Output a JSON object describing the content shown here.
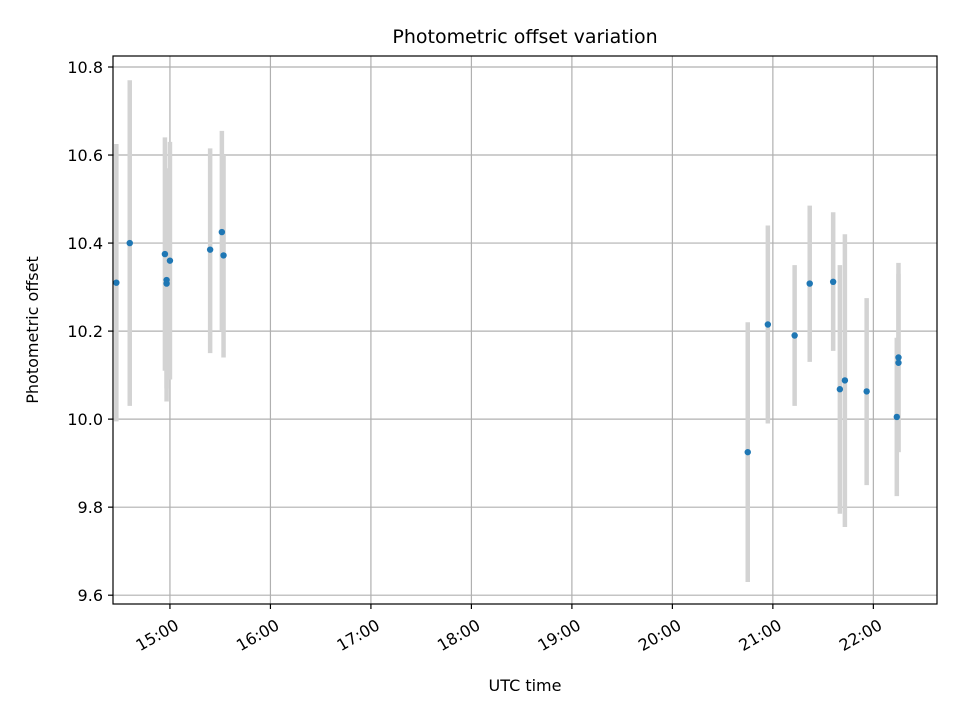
{
  "chart_data": {
    "type": "scatter",
    "title": "Photometric offset variation",
    "xlabel": "UTC time",
    "ylabel": "Photometric offset",
    "xlim": [
      "14:26",
      "22:38"
    ],
    "ylim": [
      9.58,
      10.825
    ],
    "x_ticks": [
      "15:00",
      "16:00",
      "17:00",
      "18:00",
      "19:00",
      "20:00",
      "21:00",
      "22:00"
    ],
    "y_ticks": [
      9.6,
      9.8,
      10.0,
      10.2,
      10.4,
      10.6,
      10.8
    ],
    "grid": true,
    "marker_color": "#1f77b4",
    "errorbar_color": "#d3d3d3",
    "points": [
      {
        "x": "14:28",
        "y": 10.31,
        "ylow": 9.995,
        "yhigh": 10.625
      },
      {
        "x": "14:36",
        "y": 10.4,
        "ylow": 10.03,
        "yhigh": 10.77
      },
      {
        "x": "14:57",
        "y": 10.375,
        "ylow": 10.11,
        "yhigh": 10.64
      },
      {
        "x": "14:58",
        "y": 10.308,
        "ylow": 10.04,
        "yhigh": 10.57
      },
      {
        "x": "14:58",
        "y": 10.316,
        "ylow": 10.07,
        "yhigh": 10.56
      },
      {
        "x": "15:00",
        "y": 10.36,
        "ylow": 10.09,
        "yhigh": 10.63
      },
      {
        "x": "15:24",
        "y": 10.385,
        "ylow": 10.15,
        "yhigh": 10.615
      },
      {
        "x": "15:31",
        "y": 10.425,
        "ylow": 10.2,
        "yhigh": 10.655
      },
      {
        "x": "15:32",
        "y": 10.372,
        "ylow": 10.14,
        "yhigh": 10.6
      },
      {
        "x": "20:45",
        "y": 9.925,
        "ylow": 9.63,
        "yhigh": 10.22
      },
      {
        "x": "20:57",
        "y": 10.215,
        "ylow": 9.99,
        "yhigh": 10.44
      },
      {
        "x": "21:13",
        "y": 10.19,
        "ylow": 10.03,
        "yhigh": 10.35
      },
      {
        "x": "21:22",
        "y": 10.308,
        "ylow": 10.13,
        "yhigh": 10.485
      },
      {
        "x": "21:36",
        "y": 10.312,
        "ylow": 10.155,
        "yhigh": 10.47
      },
      {
        "x": "21:40",
        "y": 10.068,
        "ylow": 9.785,
        "yhigh": 10.35
      },
      {
        "x": "21:43",
        "y": 10.088,
        "ylow": 9.755,
        "yhigh": 10.42
      },
      {
        "x": "21:56",
        "y": 10.063,
        "ylow": 9.85,
        "yhigh": 10.275
      },
      {
        "x": "22:14",
        "y": 10.005,
        "ylow": 9.825,
        "yhigh": 10.185
      },
      {
        "x": "22:15",
        "y": 10.128,
        "ylow": 9.925,
        "yhigh": 10.33
      },
      {
        "x": "22:15",
        "y": 10.14,
        "ylow": 9.925,
        "yhigh": 10.355
      }
    ]
  }
}
